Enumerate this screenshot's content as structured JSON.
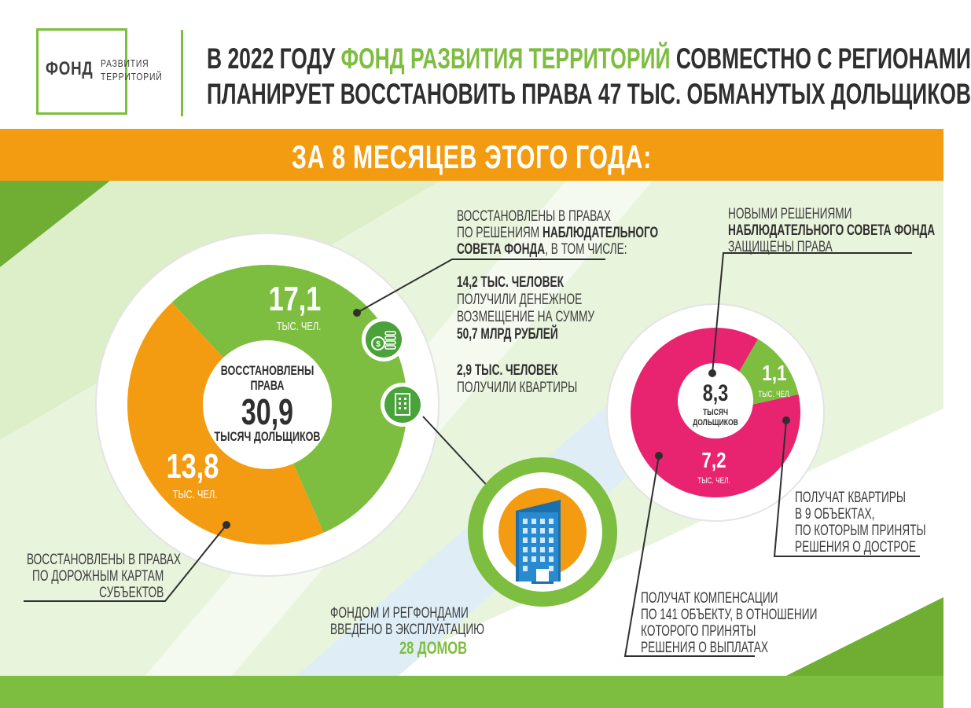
{
  "logo": {
    "word": "ФОНД",
    "sub_line1": "РАЗВИТИЯ",
    "sub_line2": "ТЕРРИТОРИЙ"
  },
  "header": {
    "line1_a": "В 2022 ГОДУ ",
    "line1_b": "ФОНД РАЗВИТИЯ ТЕРРИТОРИЙ",
    "line1_c": " СОВМЕСТНО С РЕГИОНАМИ",
    "line2": "ПЛАНИРУЕТ ВОССТАНОВИТЬ ПРАВА 47 ТЫС. ОБМАНУТЫХ ДОЛЬЩИКОВ"
  },
  "banner": {
    "text": "ЗА 8 МЕСЯЦЕВ ЭТОГО ГОДА:"
  },
  "colors": {
    "green": "#7dbd3f",
    "orange": "#f39c12",
    "pink": "#e8236f",
    "dark": "#2f2f2f"
  },
  "chart_data": [
    {
      "type": "pie",
      "categories": [
        "17,1",
        "13,8"
      ],
      "values": [
        17.1,
        13.8
      ],
      "colors": [
        "#7dbd3f",
        "#f39c12"
      ],
      "center": {
        "line1": "ВОССТАНОВЛЕНЫ",
        "line2": "ПРАВА",
        "value": "30,9",
        "unit": "ТЫСЯЧ ДОЛЬЩИКОВ"
      },
      "slice_units": [
        "ТЫС. ЧЕЛ.",
        "ТЫС. ЧЕЛ."
      ]
    },
    {
      "type": "pie",
      "categories": [
        "1,1",
        "7,2"
      ],
      "values": [
        1.1,
        7.2
      ],
      "colors": [
        "#7dbd3f",
        "#e8236f"
      ],
      "center": {
        "value": "8,3",
        "unit1": "ТЫСЯЧ",
        "unit2": "ДОЛЬЩИКОВ"
      },
      "slice_units": [
        "ТЫС. ЧЕЛ.",
        "ТЫС. ЧЕЛ."
      ]
    }
  ],
  "notes": {
    "top_a1": "ВОССТАНОВЛЕНЫ В ПРАВАХ",
    "top_a2": "ПО РЕШЕНИЯМ ",
    "top_a2b": "НАБЛЮДАТЕЛЬНОГО",
    "top_a3b": "СОВЕТА ФОНДА",
    "top_a3": ", В ТОМ ЧИСЛЕ:",
    "money_1": "14,2 ТЫС. ЧЕЛОВЕК",
    "money_2": "ПОЛУЧИЛИ ДЕНЕЖНОЕ",
    "money_3": "ВОЗМЕЩЕНИЕ НА СУММУ",
    "money_4": "50,7 МЛРД РУБЛЕЙ",
    "flat_1": "2,9 ТЫС. ЧЕЛОВЕК",
    "flat_2": "ПОЛУЧИЛИ КВАРТИРЫ",
    "left_1": "ВОССТАНОВЛЕНЫ В ПРАВАХ",
    "left_2": "ПО ДОРОЖНЫМ КАРТАМ",
    "left_3": "СУБЪЕКТОВ",
    "houses_1": "ФОНДОМ И РЕГФОНДАМИ",
    "houses_2": "ВВЕДЕНО В ЭКСПЛУАТАЦИЮ",
    "houses_3": "28 ДОМОВ",
    "new_1": "НОВЫМИ РЕШЕНИЯМИ",
    "new_2": "НАБЛЮДАТЕЛЬНОГО СОВЕТА ФОНДА",
    "new_3": "ЗАЩИЩЕНЫ ПРАВА",
    "apts_1": "ПОЛУЧАТ КВАРТИРЫ",
    "apts_2": "В 9 ОБЪЕКТАХ,",
    "apts_3": "ПО КОТОРЫМ ПРИНЯТЫ",
    "apts_4": "РЕШЕНИЯ О ДОСТРОЕ",
    "comp_1": "ПОЛУЧАТ КОМПЕНСАЦИИ",
    "comp_2": "ПО 141 ОБЪЕКТУ, В ОТНОШЕНИИ",
    "comp_3": "КОТОРОГО ПРИНЯТЫ",
    "comp_4": "РЕШЕНИЯ О ВЫПЛАТАХ"
  },
  "icons": {
    "coins": "coins-icon",
    "building": "building-icon",
    "big_building": "apartment-building-icon"
  }
}
